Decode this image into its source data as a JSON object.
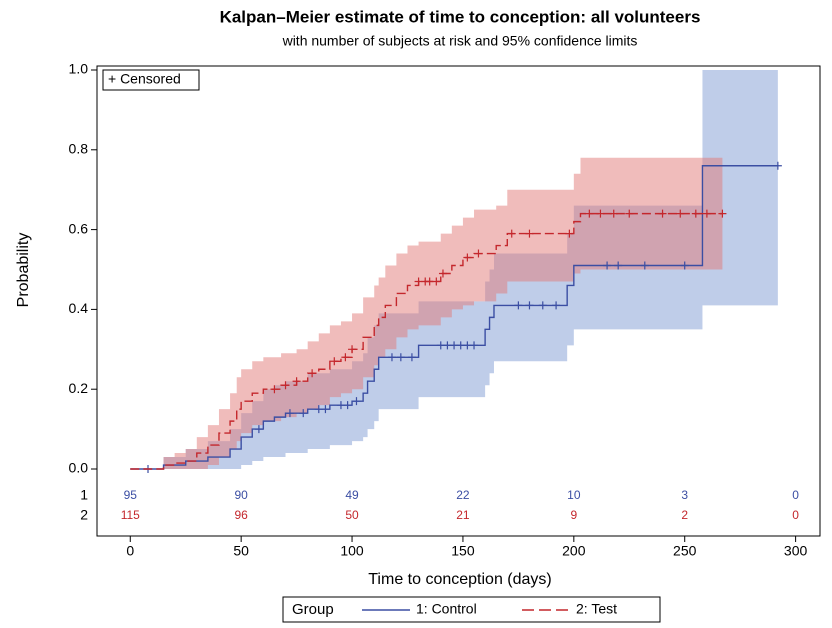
{
  "chart_data": {
    "type": "km_step",
    "title": "Kalpan–Meier estimate of time to conception: all volunteers",
    "subtitle": "with number of subjects at risk and 95% confidence limits",
    "x_label": "Time to conception (days)",
    "y_label": "Probability",
    "censored_legend": "+ Censored",
    "legend_title": "Group",
    "xlim": [
      -15,
      311
    ],
    "xticks": [
      0,
      50,
      100,
      150,
      200,
      250,
      300
    ],
    "ylim": [
      -0.01,
      1.01
    ],
    "yticks": [
      {
        "value": 0,
        "label": "0.0"
      },
      {
        "value": 0.2,
        "label": "0.2"
      },
      {
        "value": 0.4,
        "label": "0.4"
      },
      {
        "value": 0.6,
        "label": "0.6"
      },
      {
        "value": 0.8,
        "label": "0.8"
      },
      {
        "value": 1,
        "label": "1.0"
      }
    ],
    "at_risk_x": [
      0,
      50,
      100,
      150,
      200,
      250,
      300
    ],
    "series": [
      {
        "name": "1: Control",
        "row_label": "1",
        "color": "#3b4ea3",
        "band_color": "#7f9bd3",
        "dash": false,
        "x": [
          0,
          15,
          25,
          35,
          45,
          50,
          55,
          60,
          65,
          70,
          80,
          90,
          100,
          105,
          107,
          110,
          112,
          130,
          160,
          162,
          164,
          197,
          200,
          258,
          292
        ],
        "values": [
          0,
          0.01,
          0.02,
          0.03,
          0.05,
          0.08,
          0.1,
          0.12,
          0.13,
          0.14,
          0.15,
          0.16,
          0.17,
          0.19,
          0.22,
          0.25,
          0.28,
          0.31,
          0.35,
          0.38,
          0.41,
          0.46,
          0.51,
          0.76,
          0.76
        ],
        "lower": [
          0,
          0,
          0,
          0,
          0,
          0.01,
          0.02,
          0.03,
          0.03,
          0.04,
          0.05,
          0.06,
          0.07,
          0.08,
          0.1,
          0.12,
          0.15,
          0.18,
          0.21,
          0.24,
          0.27,
          0.31,
          0.35,
          0.41,
          0.41
        ],
        "upper": [
          0,
          0.03,
          0.05,
          0.07,
          0.1,
          0.14,
          0.17,
          0.2,
          0.21,
          0.22,
          0.24,
          0.25,
          0.27,
          0.29,
          0.33,
          0.36,
          0.39,
          0.42,
          0.47,
          0.5,
          0.54,
          0.59,
          0.66,
          1.0,
          1.0
        ],
        "censored": [
          8,
          58,
          72,
          78,
          85,
          88,
          95,
          98,
          102,
          118,
          122,
          127,
          140,
          143,
          146,
          149,
          152,
          155,
          175,
          180,
          186,
          192,
          215,
          220,
          232,
          250,
          292
        ],
        "at_risk": [
          95,
          90,
          49,
          22,
          10,
          3,
          0
        ]
      },
      {
        "name": "2: Test",
        "row_label": "2",
        "color": "#c4272c",
        "band_color": "#e27a78",
        "dash": true,
        "x": [
          0,
          15,
          20,
          25,
          30,
          35,
          40,
          45,
          48,
          50,
          55,
          60,
          68,
          75,
          80,
          85,
          90,
          95,
          100,
          105,
          110,
          112,
          115,
          120,
          125,
          130,
          140,
          145,
          150,
          155,
          165,
          170,
          200,
          203,
          267
        ],
        "values": [
          0,
          0.01,
          0.015,
          0.02,
          0.04,
          0.06,
          0.09,
          0.12,
          0.15,
          0.17,
          0.19,
          0.2,
          0.21,
          0.22,
          0.24,
          0.25,
          0.27,
          0.28,
          0.3,
          0.33,
          0.36,
          0.38,
          0.41,
          0.44,
          0.46,
          0.47,
          0.49,
          0.51,
          0.53,
          0.54,
          0.56,
          0.59,
          0.62,
          0.64,
          0.64
        ],
        "lower": [
          0,
          0,
          0,
          0,
          0,
          0.01,
          0.03,
          0.05,
          0.07,
          0.09,
          0.11,
          0.12,
          0.13,
          0.14,
          0.15,
          0.16,
          0.18,
          0.19,
          0.2,
          0.23,
          0.26,
          0.28,
          0.3,
          0.33,
          0.35,
          0.36,
          0.38,
          0.4,
          0.41,
          0.42,
          0.44,
          0.47,
          0.49,
          0.5,
          0.5
        ],
        "upper": [
          0,
          0.03,
          0.04,
          0.05,
          0.08,
          0.11,
          0.15,
          0.19,
          0.23,
          0.25,
          0.27,
          0.28,
          0.29,
          0.3,
          0.32,
          0.34,
          0.36,
          0.37,
          0.39,
          0.43,
          0.46,
          0.48,
          0.51,
          0.54,
          0.56,
          0.57,
          0.59,
          0.61,
          0.63,
          0.65,
          0.66,
          0.7,
          0.74,
          0.78,
          0.78
        ],
        "censored": [
          65,
          70,
          75,
          82,
          92,
          97,
          100,
          130,
          133,
          135,
          138,
          141,
          152,
          157,
          172,
          180,
          198,
          207,
          212,
          218,
          225,
          240,
          248,
          255,
          260,
          267
        ],
        "at_risk": [
          115,
          96,
          50,
          21,
          9,
          2,
          0
        ]
      }
    ]
  }
}
